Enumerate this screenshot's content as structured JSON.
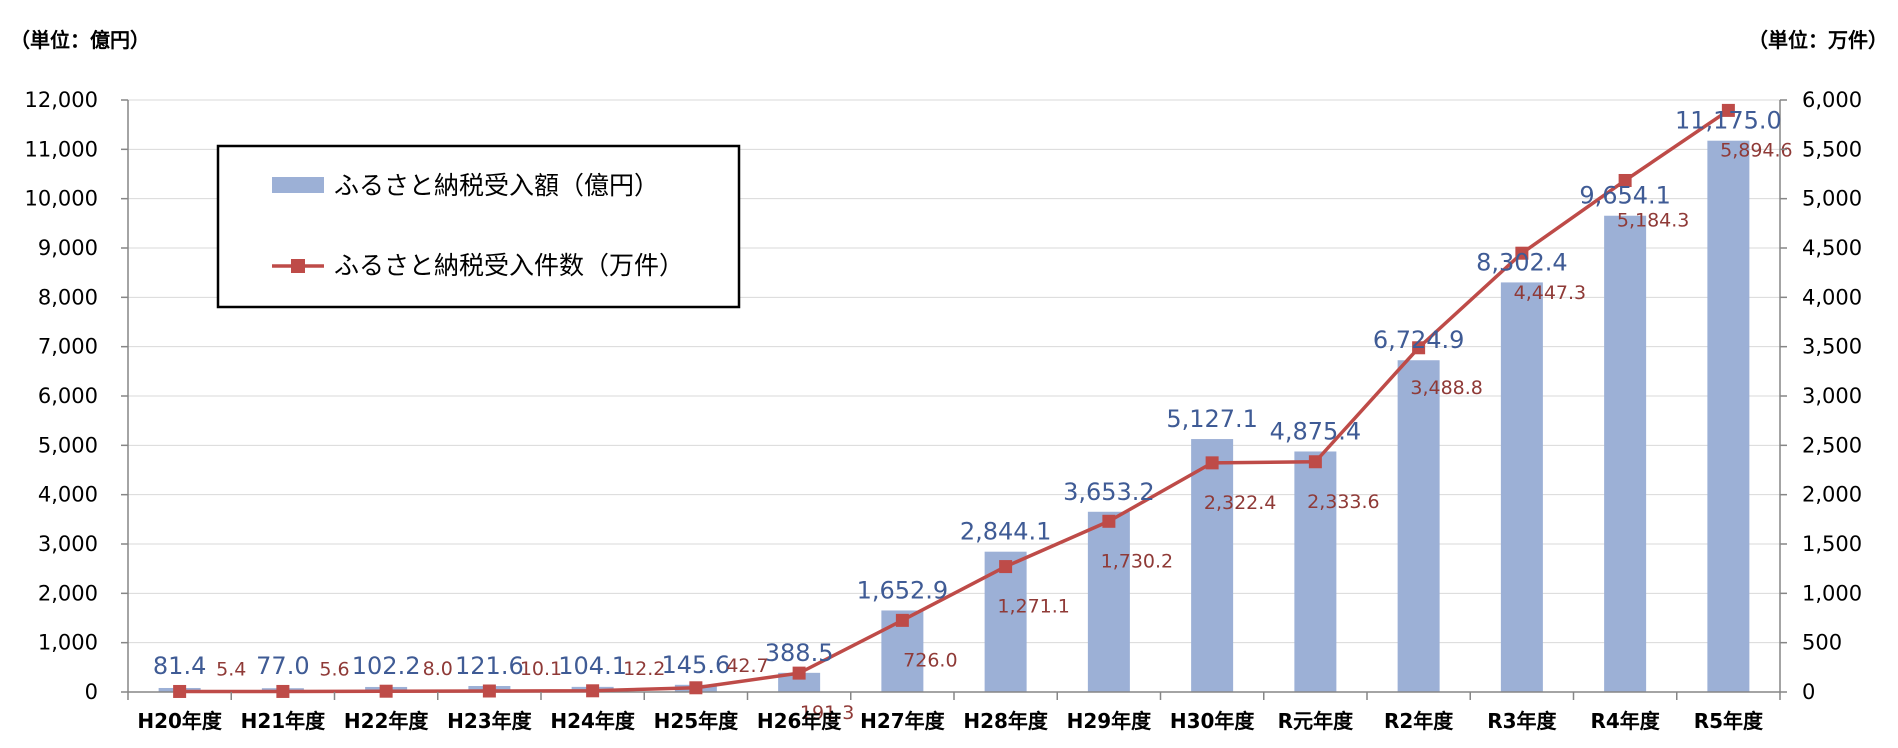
{
  "units": {
    "left": "（単位：億円）",
    "right": "（単位：万件）"
  },
  "legend": {
    "bar": "ふるさと納税受入額（億円）",
    "line": "ふるさと納税受入件数（万件）"
  },
  "colors": {
    "bar": "#9cb0d6",
    "bar_label": "#3f5b95",
    "line": "#be4b48",
    "line_label": "#8f3a37",
    "grid": "#d9d9d9"
  },
  "chart_data": {
    "type": "bar",
    "categories": [
      "H20年度",
      "H21年度",
      "H22年度",
      "H23年度",
      "H24年度",
      "H25年度",
      "H26年度",
      "H27年度",
      "H28年度",
      "H29年度",
      "H30年度",
      "R元年度",
      "R2年度",
      "R3年度",
      "R4年度",
      "R5年度"
    ],
    "series": [
      {
        "name": "ふるさと納税受入額（億円）",
        "type": "bar",
        "axis": "left",
        "values": [
          81.4,
          77.0,
          102.2,
          121.6,
          104.1,
          145.6,
          388.5,
          1652.9,
          2844.1,
          3653.2,
          5127.1,
          4875.4,
          6724.9,
          8302.4,
          9654.1,
          11175.0
        ],
        "labels": [
          "81.4",
          "77.0",
          "102.2",
          "121.6",
          "104.1",
          "145.6",
          "388.5",
          "1,652.9",
          "2,844.1",
          "3,653.2",
          "5,127.1",
          "4,875.4",
          "6,724.9",
          "8,302.4",
          "9,654.1",
          "11,175.0"
        ]
      },
      {
        "name": "ふるさと納税受入件数（万件）",
        "type": "line",
        "axis": "right",
        "values": [
          5.4,
          5.6,
          8.0,
          10.1,
          12.2,
          42.7,
          191.3,
          726.0,
          1271.1,
          1730.2,
          2322.4,
          2333.6,
          3488.8,
          4447.3,
          5184.3,
          5894.6
        ],
        "labels": [
          "5.4",
          "5.6",
          "8.0",
          "10.1",
          "12.2",
          "42.7",
          "191.3",
          "726.0",
          "1,271.1",
          "1,730.2",
          "2,322.4",
          "2,333.6",
          "3,488.8",
          "4,447.3",
          "5,184.3",
          "5,894.6"
        ]
      }
    ],
    "y_left": {
      "min": 0,
      "max": 12000,
      "ticks": [
        "0",
        "1,000",
        "2,000",
        "3,000",
        "4,000",
        "5,000",
        "6,000",
        "7,000",
        "8,000",
        "9,000",
        "10,000",
        "11,000",
        "12,000"
      ]
    },
    "y_right": {
      "min": 0,
      "max": 6000,
      "ticks": [
        "0",
        "500",
        "1,000",
        "1,500",
        "2,000",
        "2,500",
        "3,000",
        "3,500",
        "4,000",
        "4,500",
        "5,000",
        "5,500",
        "6,000"
      ]
    },
    "grid": true,
    "legend_position": "top-left"
  }
}
